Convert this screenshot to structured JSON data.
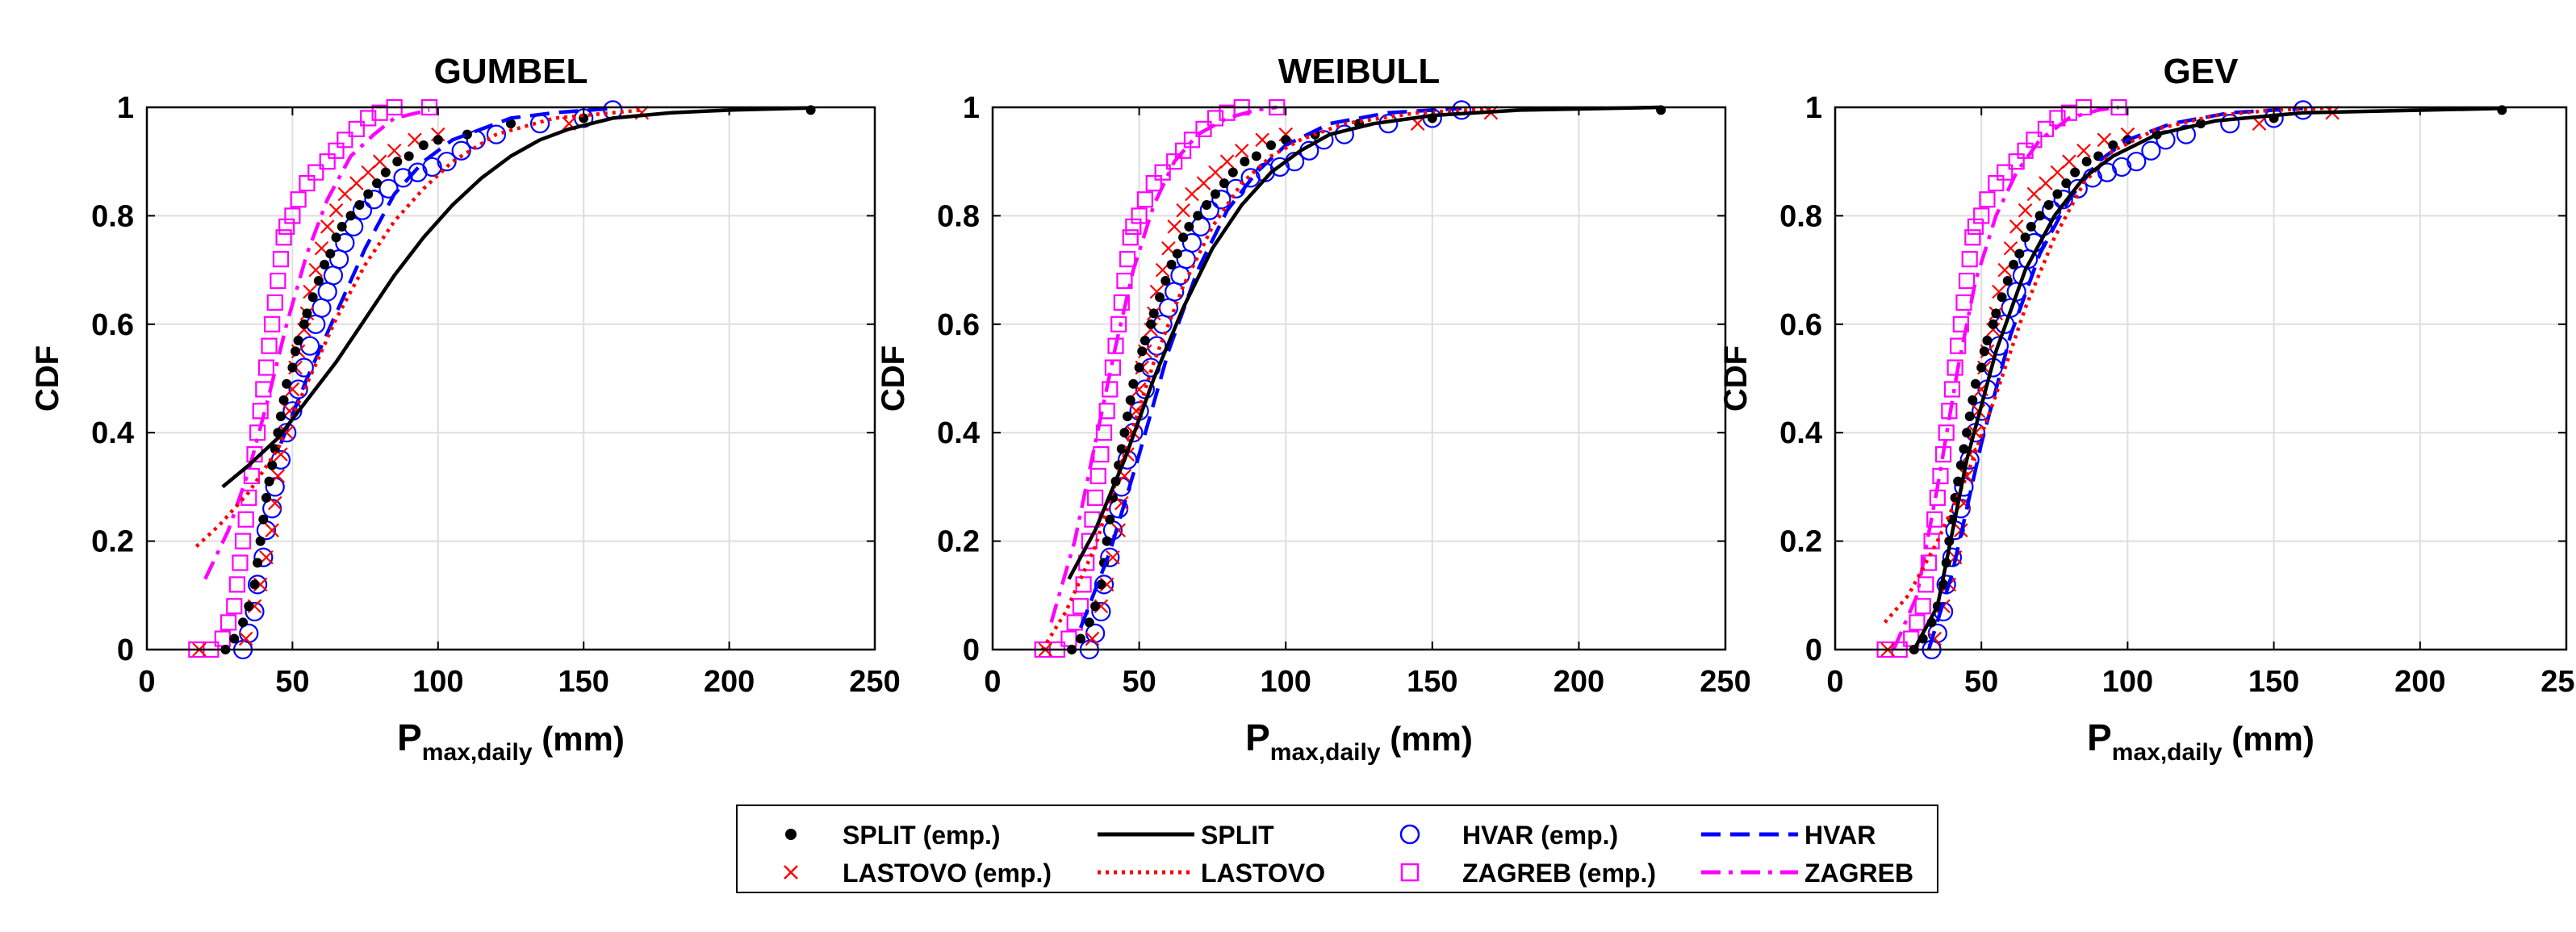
{
  "chart_data": {
    "type": "line",
    "layout": "three panels side by side with a shared legend below",
    "xlabel": "P",
    "xlabel_sub": "max,daily",
    "xlabel_unit": " (mm)",
    "ylabel": "CDF",
    "xlim": [
      0,
      250
    ],
    "ylim": [
      0,
      1
    ],
    "xticks": [
      0,
      50,
      100,
      150,
      200,
      250
    ],
    "yticks": [
      0,
      0.2,
      0.4,
      0.6,
      0.8,
      1
    ],
    "ytick_labels": [
      "0",
      "0.2",
      "0.4",
      "0.6",
      "0.8",
      "1"
    ],
    "grid": true,
    "legend": [
      {
        "key": "split_emp",
        "label": "SPLIT (emp.)",
        "marker": "dot",
        "color": "#000000"
      },
      {
        "key": "split",
        "label": "SPLIT",
        "line": "solid",
        "color": "#000000"
      },
      {
        "key": "hvar_emp",
        "label": "HVAR (emp.)",
        "marker": "circle",
        "color": "#0000ff"
      },
      {
        "key": "hvar",
        "label": "HVAR",
        "line": "dashed",
        "color": "#0000ff"
      },
      {
        "key": "lastovo_emp",
        "label": "LASTOVO (emp.)",
        "marker": "cross",
        "color": "#ff0000"
      },
      {
        "key": "lastovo",
        "label": "LASTOVO",
        "line": "dotted",
        "color": "#ff0000"
      },
      {
        "key": "zagreb_emp",
        "label": "ZAGREB (emp.)",
        "marker": "square",
        "color": "#ff00ff"
      },
      {
        "key": "zagreb",
        "label": "ZAGREB",
        "line": "dashdot",
        "color": "#ff00ff"
      }
    ],
    "empirical": {
      "split": [
        [
          27,
          0
        ],
        [
          30,
          0.02
        ],
        [
          33,
          0.05
        ],
        [
          35,
          0.08
        ],
        [
          37,
          0.12
        ],
        [
          38,
          0.16
        ],
        [
          39,
          0.2
        ],
        [
          40,
          0.24
        ],
        [
          41,
          0.28
        ],
        [
          42,
          0.31
        ],
        [
          43,
          0.34
        ],
        [
          44,
          0.37
        ],
        [
          45,
          0.4
        ],
        [
          46,
          0.43
        ],
        [
          47,
          0.46
        ],
        [
          48,
          0.49
        ],
        [
          50,
          0.52
        ],
        [
          51,
          0.55
        ],
        [
          52,
          0.57
        ],
        [
          54,
          0.6
        ],
        [
          55,
          0.62
        ],
        [
          57,
          0.65
        ],
        [
          59,
          0.68
        ],
        [
          61,
          0.71
        ],
        [
          63,
          0.73
        ],
        [
          65,
          0.76
        ],
        [
          67,
          0.78
        ],
        [
          70,
          0.8
        ],
        [
          73,
          0.82
        ],
        [
          76,
          0.84
        ],
        [
          79,
          0.86
        ],
        [
          82,
          0.88
        ],
        [
          86,
          0.9
        ],
        [
          90,
          0.91
        ],
        [
          95,
          0.93
        ],
        [
          100,
          0.94
        ],
        [
          110,
          0.95
        ],
        [
          125,
          0.97
        ],
        [
          150,
          0.98
        ],
        [
          228,
          0.995
        ]
      ],
      "lastovo": [
        [
          18,
          0
        ],
        [
          34,
          0.02
        ],
        [
          37,
          0.08
        ],
        [
          39,
          0.12
        ],
        [
          41,
          0.17
        ],
        [
          43,
          0.22
        ],
        [
          44,
          0.27
        ],
        [
          45,
          0.32
        ],
        [
          46,
          0.36
        ],
        [
          48,
          0.4
        ],
        [
          49,
          0.44
        ],
        [
          50,
          0.48
        ],
        [
          51,
          0.52
        ],
        [
          52,
          0.55
        ],
        [
          54,
          0.59
        ],
        [
          55,
          0.62
        ],
        [
          56,
          0.66
        ],
        [
          58,
          0.7
        ],
        [
          60,
          0.74
        ],
        [
          62,
          0.78
        ],
        [
          65,
          0.81
        ],
        [
          68,
          0.84
        ],
        [
          72,
          0.86
        ],
        [
          76,
          0.88
        ],
        [
          80,
          0.9
        ],
        [
          85,
          0.92
        ],
        [
          92,
          0.94
        ],
        [
          100,
          0.95
        ],
        [
          145,
          0.97
        ],
        [
          170,
          0.99
        ]
      ],
      "hvar": [
        [
          33,
          0
        ],
        [
          35,
          0.03
        ],
        [
          37,
          0.07
        ],
        [
          38,
          0.12
        ],
        [
          40,
          0.17
        ],
        [
          41,
          0.22
        ],
        [
          43,
          0.26
        ],
        [
          44,
          0.3
        ],
        [
          46,
          0.35
        ],
        [
          48,
          0.4
        ],
        [
          50,
          0.44
        ],
        [
          52,
          0.48
        ],
        [
          54,
          0.52
        ],
        [
          56,
          0.56
        ],
        [
          58,
          0.6
        ],
        [
          60,
          0.63
        ],
        [
          62,
          0.66
        ],
        [
          64,
          0.69
        ],
        [
          66,
          0.72
        ],
        [
          68,
          0.75
        ],
        [
          71,
          0.78
        ],
        [
          74,
          0.81
        ],
        [
          78,
          0.83
        ],
        [
          83,
          0.85
        ],
        [
          88,
          0.87
        ],
        [
          93,
          0.88
        ],
        [
          98,
          0.89
        ],
        [
          103,
          0.9
        ],
        [
          108,
          0.92
        ],
        [
          113,
          0.94
        ],
        [
          120,
          0.95
        ],
        [
          135,
          0.97
        ],
        [
          150,
          0.98
        ],
        [
          160,
          0.995
        ]
      ],
      "zagreb": [
        [
          17,
          0
        ],
        [
          22,
          0
        ],
        [
          26,
          0.02
        ],
        [
          28,
          0.05
        ],
        [
          30,
          0.08
        ],
        [
          31,
          0.12
        ],
        [
          32,
          0.16
        ],
        [
          33,
          0.2
        ],
        [
          34,
          0.24
        ],
        [
          35,
          0.28
        ],
        [
          36,
          0.32
        ],
        [
          37,
          0.36
        ],
        [
          38,
          0.4
        ],
        [
          39,
          0.44
        ],
        [
          40,
          0.48
        ],
        [
          41,
          0.52
        ],
        [
          42,
          0.56
        ],
        [
          43,
          0.6
        ],
        [
          44,
          0.64
        ],
        [
          45,
          0.68
        ],
        [
          46,
          0.72
        ],
        [
          47,
          0.76
        ],
        [
          48,
          0.78
        ],
        [
          50,
          0.8
        ],
        [
          52,
          0.83
        ],
        [
          55,
          0.86
        ],
        [
          58,
          0.88
        ],
        [
          62,
          0.9
        ],
        [
          65,
          0.92
        ],
        [
          68,
          0.94
        ],
        [
          72,
          0.96
        ],
        [
          76,
          0.98
        ],
        [
          80,
          0.99
        ],
        [
          85,
          1.0
        ],
        [
          97,
          1.0
        ]
      ]
    },
    "panels": [
      {
        "title": "GUMBEL",
        "fits": {
          "split": [
            [
              26,
              0.3
            ],
            [
              35,
              0.34
            ],
            [
              45,
              0.39
            ],
            [
              55,
              0.46
            ],
            [
              65,
              0.53
            ],
            [
              75,
              0.61
            ],
            [
              85,
              0.69
            ],
            [
              95,
              0.76
            ],
            [
              105,
              0.82
            ],
            [
              115,
              0.87
            ],
            [
              125,
              0.91
            ],
            [
              135,
              0.94
            ],
            [
              145,
              0.96
            ],
            [
              160,
              0.98
            ],
            [
              180,
              0.99
            ],
            [
              200,
              0.995
            ],
            [
              228,
              0.999
            ]
          ],
          "lastovo": [
            [
              17,
              0.19
            ],
            [
              25,
              0.23
            ],
            [
              35,
              0.29
            ],
            [
              45,
              0.37
            ],
            [
              55,
              0.49
            ],
            [
              65,
              0.61
            ],
            [
              75,
              0.71
            ],
            [
              85,
              0.79
            ],
            [
              95,
              0.85
            ],
            [
              105,
              0.9
            ],
            [
              120,
              0.95
            ],
            [
              140,
              0.98
            ],
            [
              160,
              0.99
            ],
            [
              170,
              0.995
            ]
          ],
          "hvar": [
            [
              46,
              0.38
            ],
            [
              55,
              0.5
            ],
            [
              65,
              0.62
            ],
            [
              75,
              0.74
            ],
            [
              85,
              0.84
            ],
            [
              95,
              0.9
            ],
            [
              105,
              0.94
            ],
            [
              115,
              0.96
            ],
            [
              125,
              0.98
            ],
            [
              140,
              0.99
            ],
            [
              160,
              0.998
            ]
          ],
          "zagreb": [
            [
              20,
              0.13
            ],
            [
              28,
              0.22
            ],
            [
              35,
              0.33
            ],
            [
              42,
              0.47
            ],
            [
              48,
              0.6
            ],
            [
              55,
              0.73
            ],
            [
              62,
              0.83
            ],
            [
              70,
              0.91
            ],
            [
              78,
              0.95
            ],
            [
              85,
              0.98
            ],
            [
              97,
              0.995
            ]
          ]
        }
      },
      {
        "title": "WEIBULL",
        "fits": {
          "split": [
            [
              26,
              0.13
            ],
            [
              35,
              0.22
            ],
            [
              45,
              0.35
            ],
            [
              55,
              0.5
            ],
            [
              65,
              0.63
            ],
            [
              75,
              0.74
            ],
            [
              85,
              0.82
            ],
            [
              95,
              0.88
            ],
            [
              105,
              0.92
            ],
            [
              115,
              0.95
            ],
            [
              130,
              0.97
            ],
            [
              150,
              0.985
            ],
            [
              180,
              0.995
            ],
            [
              228,
              1.0
            ]
          ],
          "lastovo": [
            [
              17,
              0.0
            ],
            [
              25,
              0.07
            ],
            [
              35,
              0.19
            ],
            [
              45,
              0.36
            ],
            [
              55,
              0.53
            ],
            [
              65,
              0.67
            ],
            [
              75,
              0.78
            ],
            [
              85,
              0.86
            ],
            [
              95,
              0.91
            ],
            [
              105,
              0.94
            ],
            [
              120,
              0.97
            ],
            [
              145,
              0.99
            ],
            [
              170,
              0.997
            ]
          ],
          "hvar": [
            [
              30,
              0.04
            ],
            [
              40,
              0.18
            ],
            [
              50,
              0.36
            ],
            [
              60,
              0.55
            ],
            [
              70,
              0.7
            ],
            [
              80,
              0.81
            ],
            [
              90,
              0.88
            ],
            [
              100,
              0.93
            ],
            [
              115,
              0.97
            ],
            [
              135,
              0.99
            ],
            [
              160,
              0.998
            ]
          ],
          "zagreb": [
            [
              20,
              0.05
            ],
            [
              28,
              0.2
            ],
            [
              35,
              0.38
            ],
            [
              42,
              0.56
            ],
            [
              48,
              0.7
            ],
            [
              55,
              0.82
            ],
            [
              62,
              0.9
            ],
            [
              70,
              0.95
            ],
            [
              80,
              0.98
            ],
            [
              90,
              0.995
            ],
            [
              97,
              1.0
            ]
          ]
        }
      },
      {
        "title": "GEV",
        "fits": {
          "split": [
            [
              27,
              0.0
            ],
            [
              35,
              0.08
            ],
            [
              45,
              0.35
            ],
            [
              55,
              0.55
            ],
            [
              65,
              0.7
            ],
            [
              75,
              0.8
            ],
            [
              85,
              0.87
            ],
            [
              95,
              0.91
            ],
            [
              110,
              0.95
            ],
            [
              130,
              0.975
            ],
            [
              160,
              0.99
            ],
            [
              228,
              0.998
            ]
          ],
          "lastovo": [
            [
              17,
              0.05
            ],
            [
              25,
              0.1
            ],
            [
              35,
              0.2
            ],
            [
              45,
              0.32
            ],
            [
              55,
              0.47
            ],
            [
              65,
              0.63
            ],
            [
              75,
              0.76
            ],
            [
              85,
              0.86
            ],
            [
              95,
              0.92
            ],
            [
              110,
              0.96
            ],
            [
              130,
              0.985
            ],
            [
              150,
              0.995
            ],
            [
              170,
              0.999
            ]
          ],
          "hvar": [
            [
              32,
              0.0
            ],
            [
              40,
              0.14
            ],
            [
              50,
              0.38
            ],
            [
              60,
              0.58
            ],
            [
              70,
              0.73
            ],
            [
              80,
              0.83
            ],
            [
              90,
              0.9
            ],
            [
              100,
              0.94
            ],
            [
              115,
              0.97
            ],
            [
              135,
              0.99
            ],
            [
              160,
              0.998
            ]
          ],
          "zagreb": [
            [
              20,
              0.0
            ],
            [
              28,
              0.1
            ],
            [
              35,
              0.3
            ],
            [
              42,
              0.52
            ],
            [
              48,
              0.68
            ],
            [
              55,
              0.8
            ],
            [
              62,
              0.88
            ],
            [
              70,
              0.94
            ],
            [
              80,
              0.98
            ],
            [
              90,
              0.995
            ],
            [
              97,
              1.0
            ]
          ]
        }
      }
    ]
  }
}
